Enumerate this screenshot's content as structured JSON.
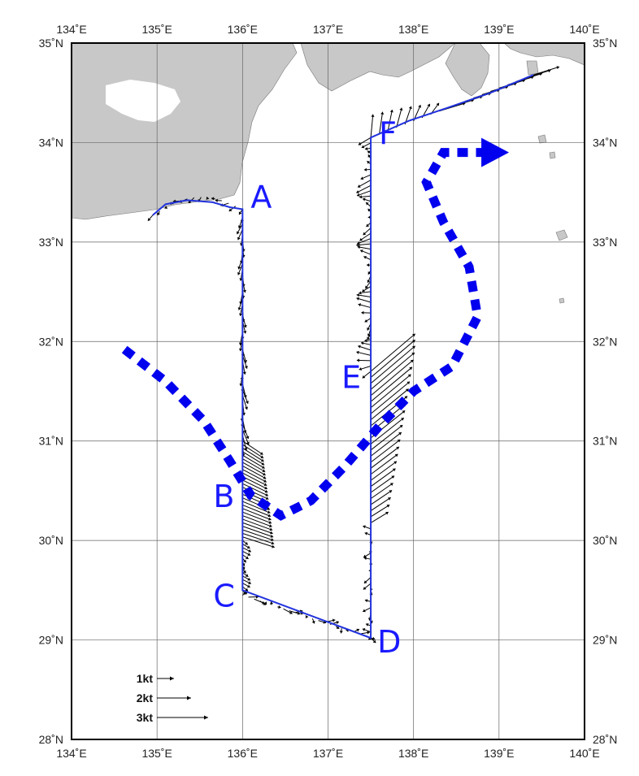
{
  "map": {
    "lon_range": [
      134,
      140
    ],
    "lat_range": [
      28,
      35
    ],
    "grid": true,
    "colors": {
      "land": "#c8c8c8",
      "sea": "#ffffff",
      "ship_track": "#2233dd",
      "current_path": "#0000ee",
      "vectors": "#000000"
    },
    "lon_ticks": [
      {
        "value": 134,
        "label": "134˚E"
      },
      {
        "value": 135,
        "label": "135˚E"
      },
      {
        "value": 136,
        "label": "136˚E"
      },
      {
        "value": 137,
        "label": "137˚E"
      },
      {
        "value": 138,
        "label": "138˚E"
      },
      {
        "value": 139,
        "label": "139˚E"
      },
      {
        "value": 140,
        "label": "140˚E"
      }
    ],
    "lat_ticks": [
      {
        "value": 35,
        "label": "35˚N"
      },
      {
        "value": 34,
        "label": "34˚N"
      },
      {
        "value": 33,
        "label": "33˚N"
      },
      {
        "value": 32,
        "label": "32˚N"
      },
      {
        "value": 31,
        "label": "31˚N"
      },
      {
        "value": 30,
        "label": "30˚N"
      },
      {
        "value": 29,
        "label": "29˚N"
      },
      {
        "value": 28,
        "label": "28˚N"
      }
    ],
    "stations": [
      {
        "label": "A",
        "lon": 136.0,
        "lat": 33.33
      },
      {
        "label": "B",
        "lon": 136.0,
        "lat": 30.45
      },
      {
        "label": "C",
        "lon": 136.0,
        "lat": 29.45
      },
      {
        "label": "D",
        "lon": 137.5,
        "lat": 29.02
      },
      {
        "label": "E",
        "lon": 137.5,
        "lat": 31.55
      },
      {
        "label": "F",
        "lon": 137.5,
        "lat": 34.05
      }
    ],
    "ship_track": [
      [
        134.95,
        33.27
      ],
      [
        135.1,
        33.38
      ],
      [
        135.35,
        33.42
      ],
      [
        135.65,
        33.4
      ],
      [
        135.85,
        33.35
      ],
      [
        136.0,
        33.33
      ],
      [
        136.0,
        29.5
      ],
      [
        137.5,
        29.02
      ],
      [
        137.5,
        34.05
      ],
      [
        137.95,
        34.22
      ],
      [
        138.4,
        34.35
      ],
      [
        138.9,
        34.5
      ],
      [
        139.4,
        34.68
      ]
    ],
    "current_path": [
      [
        134.62,
        31.92
      ],
      [
        135.1,
        31.6
      ],
      [
        135.55,
        31.2
      ],
      [
        135.85,
        30.8
      ],
      [
        136.1,
        30.45
      ],
      [
        136.45,
        30.25
      ],
      [
        136.8,
        30.4
      ],
      [
        137.2,
        30.75
      ],
      [
        137.6,
        31.15
      ],
      [
        138.0,
        31.5
      ],
      [
        138.45,
        31.75
      ],
      [
        138.75,
        32.25
      ],
      [
        138.65,
        32.75
      ],
      [
        138.35,
        33.2
      ],
      [
        138.15,
        33.6
      ],
      [
        138.35,
        33.9
      ],
      [
        138.85,
        33.9
      ]
    ],
    "legend": [
      {
        "label": "1kt",
        "knots": 1
      },
      {
        "label": "2kt",
        "knots": 2
      },
      {
        "label": "3kt",
        "knots": 3
      }
    ]
  }
}
